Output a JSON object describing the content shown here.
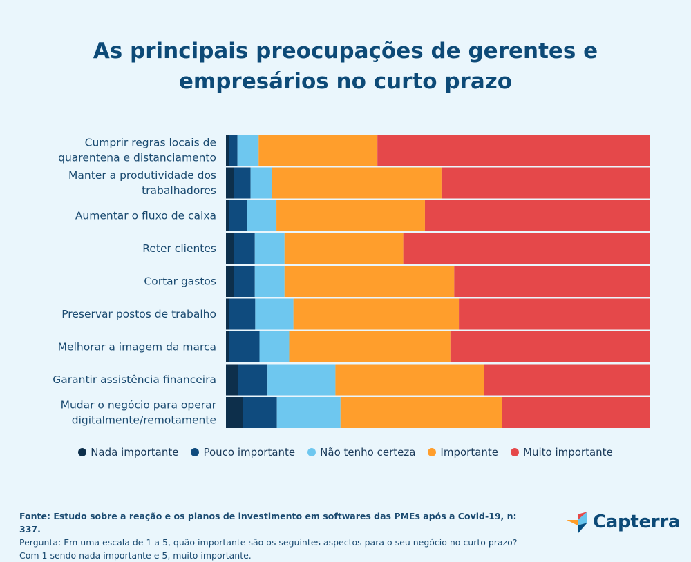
{
  "title": {
    "line1": "As principais preocupações de gerentes e",
    "line2": "empresários no curto prazo"
  },
  "colors": {
    "Nada importante": "#0d2f4b",
    "Pouco importante": "#0f4b7e",
    "Não tenho certeza": "#6ec7ef",
    "Importante": "#ff9e2c",
    "Muito importante": "#e5484a"
  },
  "chart_data": {
    "type": "bar",
    "orientation": "horizontal",
    "stacked": true,
    "unit": "percent",
    "xlim": [
      0,
      100
    ],
    "categories": [
      [
        "Cumprir regras locais de",
        "quarentena e distanciamento"
      ],
      [
        "Manter a produtividade dos",
        "trabalhadores"
      ],
      [
        "Aumentar o fluxo de caixa"
      ],
      [
        "Reter clientes"
      ],
      [
        "Cortar gastos"
      ],
      [
        "Preservar postos de trabalho"
      ],
      [
        "Melhorar a imagem da marca"
      ],
      [
        "Garantir assistência financeira"
      ],
      [
        "Mudar o negócio para operar",
        "digitalmente/remotamente"
      ]
    ],
    "series": [
      {
        "name": "Nada importante",
        "values": [
          0.7,
          1.8,
          0.7,
          1.8,
          1.8,
          0.7,
          0.7,
          2.8,
          4.0
        ]
      },
      {
        "name": "Pouco importante",
        "values": [
          2.0,
          4.0,
          4.2,
          5.0,
          5.0,
          6.2,
          7.2,
          7.0,
          8.0
        ]
      },
      {
        "name": "Não tenho certeza",
        "values": [
          5.0,
          5.0,
          7.0,
          7.0,
          7.0,
          9.0,
          7.0,
          16.0,
          15.0
        ]
      },
      {
        "name": "Importante",
        "values": [
          28.0,
          40.0,
          35.0,
          28.0,
          40.0,
          39.0,
          38.0,
          35.0,
          38.0
        ]
      },
      {
        "name": "Muito importante",
        "values": [
          64.3,
          49.2,
          53.1,
          58.2,
          46.2,
          45.1,
          47.1,
          39.2,
          35.0
        ]
      }
    ],
    "legend_position": "bottom"
  },
  "legend": [
    "Nada importante",
    "Pouco importante",
    "Não tenho certeza",
    "Importante",
    "Muito importante"
  ],
  "footer": {
    "source": "Fonte: Estudo sobre a reação e os planos de investimento em softwares das PMEs após a Covid-19, n: 337.",
    "question": "Pergunta: Em uma escala de 1 a 5, quão importante são os seguintes aspectos para o seu negócio no curto prazo?",
    "note": "Com 1 sendo nada importante e 5, muito importante."
  },
  "logo": {
    "text": "Capterra"
  }
}
